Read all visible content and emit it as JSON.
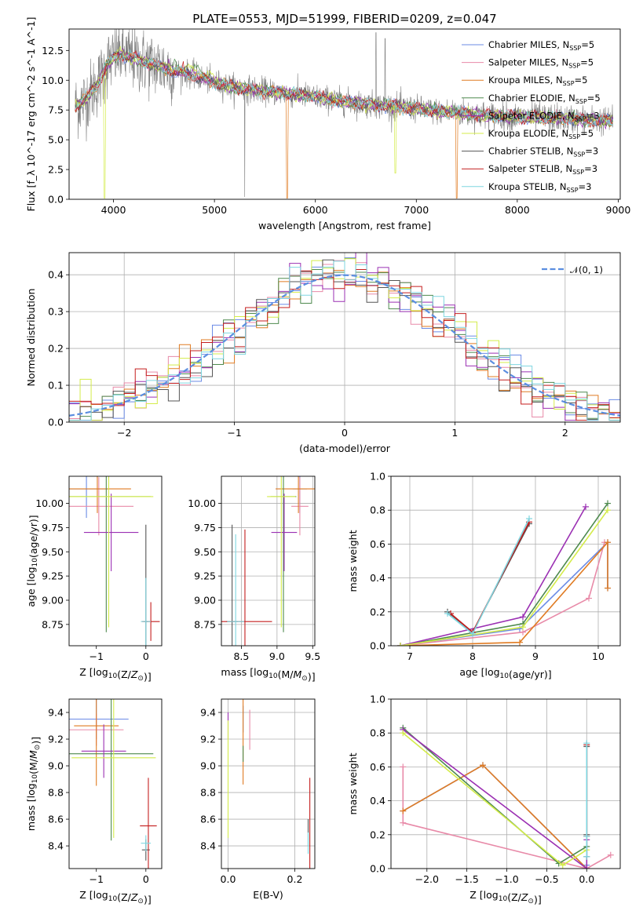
{
  "figure": {
    "title": "PLATE=0553, MJD=51999, FIBERID=0209, z=0.047"
  },
  "models": [
    {
      "name": "Chabrier MILES",
      "nssp": "5",
      "color": "#6b8be6"
    },
    {
      "name": "Salpeter MILES",
      "nssp": "5",
      "color": "#e88aa8"
    },
    {
      "name": "Kroupa MILES",
      "nssp": "5",
      "color": "#e07b22"
    },
    {
      "name": "Chabrier ELODIE",
      "nssp": "5",
      "color": "#4e8a4e"
    },
    {
      "name": "Salpeter ELODIE",
      "nssp": "3",
      "color": "#9b30b3"
    },
    {
      "name": "Kroupa ELODIE",
      "nssp": "5",
      "color": "#d4ec4a"
    },
    {
      "name": "Chabrier STELIB",
      "nssp": "3",
      "color": "#555555"
    },
    {
      "name": "Salpeter STELIB",
      "nssp": "3",
      "color": "#c41e1e"
    },
    {
      "name": "Kroupa STELIB",
      "nssp": "3",
      "color": "#7fd6e0"
    }
  ],
  "chart_data": [
    {
      "id": "spectrum",
      "type": "line",
      "title": "PLATE=0553, MJD=51999, FIBERID=0209, z=0.047",
      "xlabel": "wavelength [Angstrom, rest frame]",
      "ylabel": "Flux [f_λ 10^-17 erg cm^-2 s^-1 A^-1]",
      "xlim": [
        3560,
        9020
      ],
      "ylim": [
        0,
        14.3
      ],
      "xticks": [
        "4000",
        "5000",
        "6000",
        "7000",
        "8000",
        "9000"
      ],
      "yticks": [
        "0.0",
        "2.5",
        "5.0",
        "7.5",
        "10.0",
        "12.5"
      ],
      "data_color": "#808080",
      "continuum_points": [
        [
          3620,
          7.8
        ],
        [
          3700,
          8.2
        ],
        [
          3850,
          9.8
        ],
        [
          3950,
          11.5
        ],
        [
          4050,
          12.2
        ],
        [
          4200,
          11.8
        ],
        [
          4400,
          11.3
        ],
        [
          4600,
          10.8
        ],
        [
          4800,
          10.4
        ],
        [
          5000,
          9.8
        ],
        [
          5200,
          9.4
        ],
        [
          5400,
          9.2
        ],
        [
          5600,
          9.0
        ],
        [
          5800,
          8.8
        ],
        [
          6000,
          8.6
        ],
        [
          6200,
          8.3
        ],
        [
          6400,
          8.1
        ],
        [
          6600,
          7.9
        ],
        [
          6800,
          7.8
        ],
        [
          7000,
          7.6
        ],
        [
          7200,
          7.4
        ],
        [
          7400,
          7.3
        ],
        [
          7600,
          7.1
        ],
        [
          7800,
          7.0
        ],
        [
          8000,
          6.9
        ],
        [
          8200,
          6.9
        ],
        [
          8400,
          6.8
        ],
        [
          8600,
          6.7
        ],
        [
          8800,
          6.6
        ],
        [
          8950,
          6.6
        ]
      ],
      "legend_position": "upper right",
      "grid": false
    },
    {
      "id": "residuals",
      "type": "histogram",
      "xlabel": "(data-model)/error",
      "ylabel": "Normed distribution",
      "xlim": [
        -2.5,
        2.5
      ],
      "ylim": [
        0,
        0.46
      ],
      "xticks": [
        "−2",
        "−1",
        "0",
        "1",
        "2"
      ],
      "yticks": [
        "0.0",
        "0.1",
        "0.2",
        "0.3",
        "0.4"
      ],
      "bin_width": 0.1,
      "gaussian_label": "𝒩(0, 1)",
      "gaussian_color": "#5b8ee0",
      "legend_position": "upper right",
      "grid": true
    },
    {
      "id": "age-vs-Z",
      "type": "scatter",
      "xlabel": "Z [log10(Z/Z⊙)]",
      "ylabel": "age  [log10(age/yr)]",
      "xlim": [
        -1.55,
        0.32
      ],
      "ylim": [
        8.53,
        10.28
      ],
      "xticks": [
        "−1",
        "0"
      ],
      "yticks": [
        "8.75",
        "9.00",
        "9.25",
        "9.50",
        "9.75",
        "10.00"
      ],
      "points": [
        {
          "model": "Chabrier MILES",
          "x": -1.2,
          "y": 10.15,
          "xerr": 0.45,
          "yerr": 0.3
        },
        {
          "model": "Salpeter MILES",
          "x": -0.95,
          "y": 9.97,
          "xerr": 0.7,
          "yerr": 0.3
        },
        {
          "model": "Kroupa MILES",
          "x": -0.98,
          "y": 10.15,
          "xerr": 0.68,
          "yerr": 0.25
        },
        {
          "model": "Chabrier ELODIE",
          "x": -0.8,
          "y": 10.07,
          "xerr": 0.9,
          "yerr": 1.4
        },
        {
          "model": "Salpeter ELODIE",
          "x": -0.7,
          "y": 9.7,
          "xerr": 0.55,
          "yerr": 0.4
        },
        {
          "model": "Kroupa ELODIE",
          "x": -0.75,
          "y": 10.07,
          "xerr": 0.9,
          "yerr": 1.35
        },
        {
          "model": "Chabrier STELIB",
          "x": 0.0,
          "y": 8.78,
          "xerr": 0.05,
          "yerr": 1.0
        },
        {
          "model": "Salpeter STELIB",
          "x": 0.1,
          "y": 8.78,
          "xerr": 0.18,
          "yerr": 0.2
        },
        {
          "model": "Kroupa STELIB",
          "x": 0.0,
          "y": 8.78,
          "xerr": 0.1,
          "yerr": 0.45
        }
      ],
      "grid": false
    },
    {
      "id": "age-vs-mass",
      "type": "scatter",
      "xlabel": "mass [log10(M/M⊙)]",
      "ylabel": "",
      "xlim": [
        8.22,
        9.53
      ],
      "ylim": [
        8.53,
        10.28
      ],
      "xticks": [
        "8.0",
        "8.5",
        "9.0",
        "9.5"
      ],
      "yticks": [
        "8.75",
        "9.00",
        "9.25",
        "9.50",
        "9.75",
        "10.00"
      ],
      "points": [
        {
          "model": "Chabrier MILES",
          "x": 9.32,
          "y": 10.15,
          "xerr": 0.1,
          "yerr": 0.25
        },
        {
          "model": "Salpeter MILES",
          "x": 9.32,
          "y": 9.97,
          "xerr": 0.12,
          "yerr": 0.3
        },
        {
          "model": "Kroupa MILES",
          "x": 9.3,
          "y": 10.15,
          "xerr": 0.32,
          "yerr": 0.25
        },
        {
          "model": "Chabrier ELODIE",
          "x": 9.09,
          "y": 10.07,
          "xerr": 0.18,
          "yerr": 1.4
        },
        {
          "model": "Salpeter ELODIE",
          "x": 9.1,
          "y": 9.7,
          "xerr": 0.18,
          "yerr": 0.4
        },
        {
          "model": "Kroupa ELODIE",
          "x": 9.06,
          "y": 10.07,
          "xerr": 0.2,
          "yerr": 1.35
        },
        {
          "model": "Chabrier STELIB",
          "x": 8.37,
          "y": 8.78,
          "xerr": 0.08,
          "yerr": 1.0
        },
        {
          "model": "Salpeter STELIB",
          "x": 8.55,
          "y": 8.78,
          "xerr": 0.38,
          "yerr": 0.95
        },
        {
          "model": "Kroupa STELIB",
          "x": 8.42,
          "y": 8.78,
          "xerr": 0.12,
          "yerr": 0.9
        }
      ],
      "grid": true
    },
    {
      "id": "massweight-vs-age",
      "type": "line",
      "xlabel": "age  [log10(age/yr)]",
      "ylabel": "mass weight",
      "xlim": [
        6.7,
        10.35
      ],
      "ylim": [
        0,
        1.0
      ],
      "xticks": [
        "7",
        "8",
        "9",
        "10"
      ],
      "yticks": [
        "0.0",
        "0.2",
        "0.4",
        "0.6",
        "0.8",
        "1.0"
      ],
      "series": [
        {
          "model": "Chabrier MILES",
          "x": [
            6.85,
            8.75,
            10.15,
            10.15
          ],
          "y": [
            0.0,
            0.1,
            0.61,
            0.34
          ]
        },
        {
          "model": "Salpeter MILES",
          "x": [
            6.85,
            8.8,
            9.85,
            10.1
          ],
          "y": [
            0.0,
            0.08,
            0.28,
            0.61
          ]
        },
        {
          "model": "Kroupa MILES",
          "x": [
            6.85,
            8.75,
            10.15,
            10.15
          ],
          "y": [
            0.0,
            0.02,
            0.61,
            0.34
          ]
        },
        {
          "model": "Chabrier ELODIE",
          "x": [
            6.85,
            8.8,
            10.15
          ],
          "y": [
            0.0,
            0.13,
            0.84
          ]
        },
        {
          "model": "Salpeter ELODIE",
          "x": [
            6.85,
            8.8,
            9.8
          ],
          "y": [
            0.0,
            0.17,
            0.82
          ]
        },
        {
          "model": "Kroupa ELODIE",
          "x": [
            6.85,
            8.8,
            10.15
          ],
          "y": [
            0.0,
            0.11,
            0.8
          ]
        },
        {
          "model": "Chabrier STELIB",
          "x": [
            7.6,
            8.0,
            8.9
          ],
          "y": [
            0.2,
            0.08,
            0.72
          ]
        },
        {
          "model": "Salpeter STELIB",
          "x": [
            7.65,
            8.0,
            8.9
          ],
          "y": [
            0.19,
            0.08,
            0.73
          ]
        },
        {
          "model": "Kroupa STELIB",
          "x": [
            7.6,
            8.0,
            8.9
          ],
          "y": [
            0.19,
            0.07,
            0.75
          ]
        }
      ],
      "grid": true
    },
    {
      "id": "mass-vs-Z",
      "type": "scatter",
      "xlabel": "Z [log10(Z/Z⊙)]",
      "ylabel": "mass [log10(M/M⊙)]",
      "xlim": [
        -1.55,
        0.32
      ],
      "ylim": [
        8.23,
        9.5
      ],
      "xticks": [
        "−1",
        "0"
      ],
      "yticks": [
        "8.4",
        "8.6",
        "8.8",
        "9.0",
        "9.2",
        "9.4"
      ],
      "points": [
        {
          "model": "Chabrier MILES",
          "x": -1.0,
          "y": 9.35,
          "xerr": 0.65,
          "yerr": 0.15
        },
        {
          "model": "Salpeter MILES",
          "x": -1.0,
          "y": 9.27,
          "xerr": 0.55,
          "yerr": 0.12
        },
        {
          "model": "Kroupa MILES",
          "x": -1.0,
          "y": 9.3,
          "xerr": 0.45,
          "yerr": 0.45
        },
        {
          "model": "Chabrier ELODIE",
          "x": -0.7,
          "y": 9.09,
          "xerr": 0.85,
          "yerr": 0.65
        },
        {
          "model": "Salpeter ELODIE",
          "x": -0.85,
          "y": 9.11,
          "xerr": 0.45,
          "yerr": 0.2
        },
        {
          "model": "Kroupa ELODIE",
          "x": -0.65,
          "y": 9.06,
          "xerr": 0.85,
          "yerr": 0.6
        },
        {
          "model": "Chabrier STELIB",
          "x": 0.0,
          "y": 8.37,
          "xerr": 0.08,
          "yerr": 0.08
        },
        {
          "model": "Salpeter STELIB",
          "x": 0.05,
          "y": 8.55,
          "xerr": 0.17,
          "yerr": 0.36
        },
        {
          "model": "Kroupa STELIB",
          "x": 0.0,
          "y": 8.42,
          "xerr": 0.1,
          "yerr": 0.06
        }
      ],
      "grid": false
    },
    {
      "id": "mass-vs-EBV",
      "type": "scatter",
      "xlabel": "E(B-V)",
      "ylabel": "",
      "xlim": [
        -0.02,
        0.26
      ],
      "ylim": [
        8.23,
        9.5
      ],
      "xticks": [
        "0.0",
        "0.2"
      ],
      "yticks": [
        "8.4",
        "8.6",
        "8.8",
        "9.0",
        "9.2",
        "9.4"
      ],
      "points": [
        {
          "model": "Chabrier MILES",
          "x": 0.045,
          "y": 9.35,
          "xerr": 0.0,
          "yerr": 0.1
        },
        {
          "model": "Salpeter MILES",
          "x": 0.065,
          "y": 9.27,
          "xerr": 0.0,
          "yerr": 0.15
        },
        {
          "model": "Kroupa MILES",
          "x": 0.045,
          "y": 9.3,
          "xerr": 0.0,
          "yerr": 0.44
        },
        {
          "model": "Chabrier ELODIE",
          "x": 0.045,
          "y": 9.09,
          "xerr": 0.0,
          "yerr": 0.06
        },
        {
          "model": "Salpeter ELODIE",
          "x": 0.0,
          "y": 9.3,
          "xerr": 0.0,
          "yerr": 0.1
        },
        {
          "model": "Kroupa ELODIE",
          "x": 0.0,
          "y": 8.9,
          "xerr": 0.0,
          "yerr": 0.44
        },
        {
          "model": "Chabrier STELIB",
          "x": 0.24,
          "y": 8.5,
          "xerr": 0.0,
          "yerr": 0.1
        },
        {
          "model": "Salpeter STELIB",
          "x": 0.245,
          "y": 8.55,
          "xerr": 0.0,
          "yerr": 0.36
        },
        {
          "model": "Kroupa STELIB",
          "x": 0.24,
          "y": 8.42,
          "xerr": 0.0,
          "yerr": 0.08
        }
      ],
      "grid": true
    },
    {
      "id": "massweight-vs-Z",
      "type": "line",
      "xlabel": "Z [log10(Z/Z⊙)]",
      "ylabel": "mass weight",
      "xlim": [
        -2.45,
        0.42
      ],
      "ylim": [
        0,
        1.0
      ],
      "xticks": [
        "−2.0",
        "−1.5",
        "−1.0",
        "−0.5",
        "0.0"
      ],
      "yticks": [
        "0.0",
        "0.2",
        "0.4",
        "0.6",
        "0.8",
        "1.0"
      ],
      "series": [
        {
          "model": "Chabrier MILES",
          "x": [
            -2.3,
            -1.3,
            0.0,
            0.0
          ],
          "y": [
            0.34,
            0.61,
            0.0,
            0.02
          ]
        },
        {
          "model": "Salpeter MILES",
          "x": [
            -2.3,
            -2.3,
            0.0,
            0.3
          ],
          "y": [
            0.6,
            0.27,
            0.0,
            0.08
          ]
        },
        {
          "model": "Kroupa MILES",
          "x": [
            -2.3,
            -1.3,
            0.0
          ],
          "y": [
            0.34,
            0.61,
            0.0
          ]
        },
        {
          "model": "Chabrier ELODIE",
          "x": [
            -2.3,
            -0.35,
            0.0
          ],
          "y": [
            0.83,
            0.03,
            0.13
          ]
        },
        {
          "model": "Salpeter ELODIE",
          "x": [
            -2.3,
            0.0,
            0.0
          ],
          "y": [
            0.82,
            0.0,
            0.17
          ]
        },
        {
          "model": "Kroupa ELODIE",
          "x": [
            -2.3,
            -0.3,
            0.0
          ],
          "y": [
            0.8,
            0.02,
            0.11
          ]
        },
        {
          "model": "Chabrier STELIB",
          "x": [
            0.0,
            0.0,
            0.0
          ],
          "y": [
            0.2,
            0.07,
            0.72
          ]
        },
        {
          "model": "Salpeter STELIB",
          "x": [
            0.0,
            0.0
          ],
          "y": [
            0.19,
            0.73
          ]
        },
        {
          "model": "Kroupa STELIB",
          "x": [
            0.0,
            0.0,
            0.0
          ],
          "y": [
            0.19,
            0.07,
            0.74
          ]
        }
      ],
      "grid": true
    }
  ]
}
